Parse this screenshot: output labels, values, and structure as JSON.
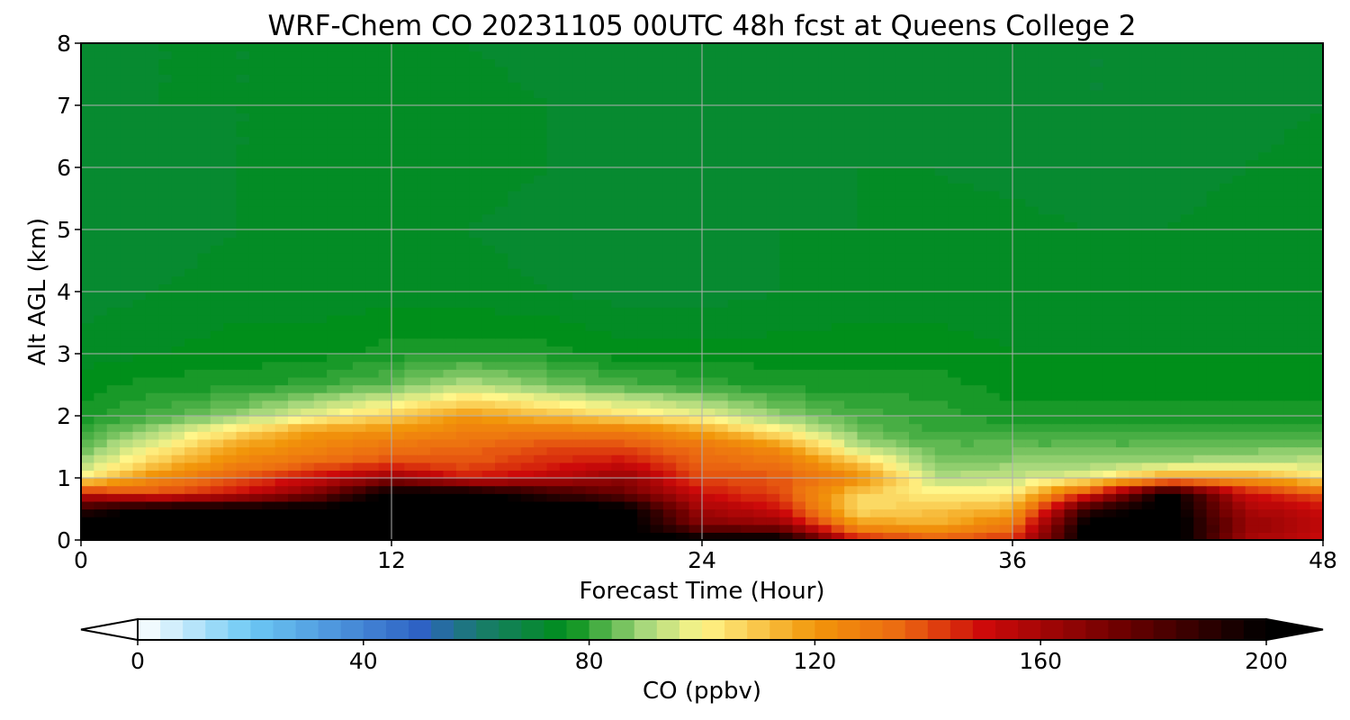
{
  "chart_data": {
    "type": "heatmap",
    "title": "WRF-Chem CO  20231105 00UTC 48h fcst at Queens College 2",
    "xlabel": "Forecast Time (Hour)",
    "ylabel": "Alt AGL (km)",
    "xlim": [
      0,
      48
    ],
    "ylim": [
      0,
      8
    ],
    "x_ticks": [
      0,
      12,
      24,
      36,
      48
    ],
    "y_ticks": [
      0,
      1,
      2,
      3,
      4,
      5,
      6,
      7,
      8
    ],
    "grid": true,
    "field": {
      "times": [
        0,
        3,
        6,
        9,
        12,
        15,
        18,
        21,
        24,
        27,
        30,
        33,
        36,
        39,
        42,
        45,
        48
      ],
      "altitudes": [
        0,
        0.25,
        0.5,
        0.75,
        1,
        1.25,
        1.5,
        1.75,
        2,
        2.5,
        3,
        4,
        5,
        6,
        7,
        8
      ],
      "values_ppbv": [
        [
          205,
          205,
          205,
          205,
          205,
          205,
          205,
          205,
          205,
          205,
          150,
          140,
          145,
          205,
          210,
          160,
          150
        ],
        [
          205,
          205,
          205,
          205,
          205,
          205,
          205,
          205,
          170,
          165,
          120,
          115,
          130,
          205,
          210,
          165,
          155
        ],
        [
          190,
          205,
          205,
          205,
          205,
          205,
          205,
          205,
          160,
          150,
          105,
          110,
          115,
          190,
          205,
          160,
          150
        ],
        [
          150,
          140,
          150,
          170,
          205,
          205,
          190,
          175,
          150,
          140,
          108,
          102,
          102,
          145,
          205,
          150,
          138
        ],
        [
          100,
          125,
          138,
          150,
          165,
          148,
          155,
          165,
          140,
          138,
          125,
          92,
          93,
          100,
          120,
          120,
          105
        ],
        [
          90,
          110,
          125,
          135,
          140,
          138,
          145,
          150,
          135,
          132,
          110,
          86,
          88,
          88,
          90,
          92,
          93
        ],
        [
          84,
          100,
          118,
          125,
          132,
          135,
          140,
          140,
          132,
          122,
          92,
          84,
          84,
          84,
          84,
          85,
          86
        ],
        [
          80,
          90,
          105,
          120,
          122,
          128,
          130,
          130,
          118,
          102,
          86,
          80,
          80,
          80,
          80,
          80,
          80
        ],
        [
          78,
          82,
          88,
          98,
          108,
          120,
          112,
          105,
          98,
          88,
          82,
          80,
          78,
          78,
          78,
          78,
          78
        ],
        [
          76,
          78,
          78,
          80,
          84,
          92,
          86,
          82,
          80,
          78,
          78,
          78,
          76,
          76,
          76,
          76,
          76
        ],
        [
          74,
          75,
          76,
          76,
          78,
          78,
          78,
          76,
          76,
          76,
          76,
          76,
          75,
          75,
          75,
          75,
          75
        ],
        [
          72,
          73,
          74,
          74,
          74,
          74,
          73,
          72,
          72,
          73,
          74,
          74,
          74,
          74,
          74,
          74,
          74
        ],
        [
          72,
          72,
          73,
          74,
          74,
          73,
          72,
          72,
          72,
          73,
          73,
          74,
          74,
          73,
          73,
          74,
          74
        ],
        [
          72,
          72,
          73,
          73,
          74,
          74,
          73,
          72,
          72,
          72,
          73,
          73,
          72,
          71,
          72,
          73,
          74
        ],
        [
          72,
          73,
          73,
          73,
          74,
          74,
          73,
          72,
          71,
          72,
          73,
          72,
          72,
          71,
          71,
          72,
          73
        ],
        [
          72,
          73,
          73,
          73,
          73,
          73,
          72,
          71,
          71,
          72,
          73,
          72,
          71,
          71,
          71,
          72,
          73
        ]
      ]
    },
    "colorbar": {
      "label": "CO  (ppbv)",
      "min": 0,
      "max": 200,
      "ticks": [
        0,
        40,
        80,
        120,
        160,
        200
      ],
      "extend": "both",
      "stops": [
        {
          "v": 0,
          "color": "#ffffff"
        },
        {
          "v": 20,
          "color": "#6cc8f4"
        },
        {
          "v": 50,
          "color": "#2e62c4"
        },
        {
          "v": 60,
          "color": "#1a7a70"
        },
        {
          "v": 76,
          "color": "#008f1a"
        },
        {
          "v": 90,
          "color": "#a8d87c"
        },
        {
          "v": 100,
          "color": "#fff68a"
        },
        {
          "v": 120,
          "color": "#f2960a"
        },
        {
          "v": 135,
          "color": "#ec6a12"
        },
        {
          "v": 150,
          "color": "#cd0a0a"
        },
        {
          "v": 175,
          "color": "#6a0000"
        },
        {
          "v": 200,
          "color": "#000000"
        }
      ]
    }
  }
}
